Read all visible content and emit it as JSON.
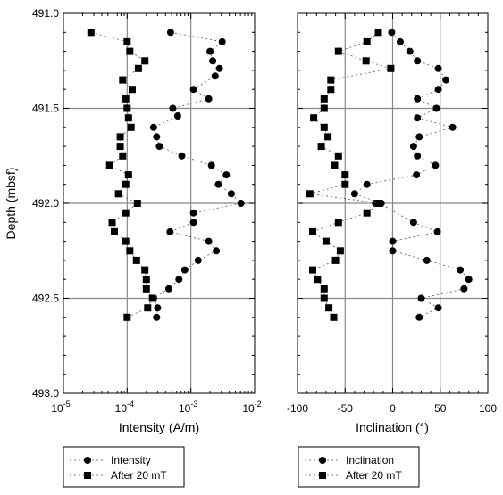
{
  "chart_data": [
    {
      "type": "scatter",
      "panel": "left",
      "xscale": "log",
      "xlabel": "Intensity (A/m)",
      "ylabel": "Depth (mbsf)",
      "xlim": [
        1e-05,
        0.01
      ],
      "ylim": [
        491.0,
        493.0
      ],
      "y_inverted": true,
      "grid": "major lines at x = 1e-4 and 1e-3; y = 491.5, 492.0, 492.5",
      "x_ticks": [
        {
          "v": 1e-05,
          "base": "10",
          "exp": "-5"
        },
        {
          "v": 0.0001,
          "base": "10",
          "exp": "-4"
        },
        {
          "v": 0.001,
          "base": "10",
          "exp": "-3"
        },
        {
          "v": 0.01,
          "base": "10",
          "exp": "-2"
        }
      ],
      "y_ticks": [
        "491.0",
        "491.5",
        "492.0",
        "492.5",
        "493.0"
      ],
      "legend_placement": "bottom, below plot",
      "series": [
        {
          "name": "Intensity",
          "marker": "circle",
          "points": [
            [
              0.00048,
              491.1
            ],
            [
              0.0031,
              491.15
            ],
            [
              0.002,
              491.2
            ],
            [
              0.0022,
              491.25
            ],
            [
              0.0028,
              491.29
            ],
            [
              0.0024,
              491.33
            ],
            [
              0.0011,
              491.4
            ],
            [
              0.0019,
              491.45
            ],
            [
              0.00052,
              491.5
            ],
            [
              0.00062,
              491.54
            ],
            [
              0.00026,
              491.6
            ],
            [
              0.00029,
              491.65
            ],
            [
              0.00032,
              491.7
            ],
            [
              0.00072,
              491.75
            ],
            [
              0.0021,
              491.8
            ],
            [
              0.0036,
              491.85
            ],
            [
              0.0027,
              491.9
            ],
            [
              0.0043,
              491.95
            ],
            [
              0.0061,
              492.0
            ],
            [
              0.0011,
              492.05
            ],
            [
              0.0011,
              492.1
            ],
            [
              0.00047,
              492.15
            ],
            [
              0.0019,
              492.2
            ],
            [
              0.0025,
              492.25
            ],
            [
              0.0013,
              492.3
            ],
            [
              0.0008,
              492.35
            ],
            [
              0.00065,
              492.4
            ],
            [
              0.00045,
              492.45
            ],
            [
              0.00026,
              492.5
            ],
            [
              0.0003,
              492.55
            ],
            [
              0.00029,
              492.6
            ]
          ]
        },
        {
          "name": "After 20 mT",
          "marker": "square",
          "points": [
            [
              2.7e-05,
              491.1
            ],
            [
              0.0001,
              491.15
            ],
            [
              0.00011,
              491.2
            ],
            [
              0.00019,
              491.25
            ],
            [
              0.00015,
              491.29
            ],
            [
              8.5e-05,
              491.35
            ],
            [
              0.00012,
              491.4
            ],
            [
              9.5e-05,
              491.45
            ],
            [
              0.0001,
              491.5
            ],
            [
              0.000105,
              491.55
            ],
            [
              0.000115,
              491.6
            ],
            [
              7.8e-05,
              491.65
            ],
            [
              7.8e-05,
              491.7
            ],
            [
              8.5e-05,
              491.75
            ],
            [
              5.3e-05,
              491.8
            ],
            [
              0.000105,
              491.85
            ],
            [
              9.5e-05,
              491.9
            ],
            [
              7.3e-05,
              491.95
            ],
            [
              0.000145,
              492.0
            ],
            [
              9.5e-05,
              492.05
            ],
            [
              5.8e-05,
              492.1
            ],
            [
              6.3e-05,
              492.15
            ],
            [
              9.5e-05,
              492.2
            ],
            [
              0.00011,
              492.25
            ],
            [
              0.00014,
              492.3
            ],
            [
              0.00019,
              492.35
            ],
            [
              0.0002,
              492.4
            ],
            [
              0.0002,
              492.45
            ],
            [
              0.00025,
              492.5
            ],
            [
              0.00021,
              492.55
            ],
            [
              0.0001,
              492.6
            ]
          ]
        }
      ]
    },
    {
      "type": "scatter",
      "panel": "right",
      "xlabel": "Inclination (°)",
      "xlim": [
        -100,
        100
      ],
      "ylim": [
        491.0,
        493.0
      ],
      "y_inverted": true,
      "grid": "major lines at x = -50, 0, 50; y = 491.5, 492.0, 492.5",
      "x_ticks": [
        "-100",
        "-50",
        "0",
        "50",
        "100"
      ],
      "legend_placement": "bottom, below plot",
      "series": [
        {
          "name": "Inclination",
          "marker": "circle",
          "points": [
            [
              -1,
              491.1
            ],
            [
              8,
              491.15
            ],
            [
              18,
              491.2
            ],
            [
              26,
              491.25
            ],
            [
              48,
              491.29
            ],
            [
              56,
              491.35
            ],
            [
              48,
              491.4
            ],
            [
              26,
              491.45
            ],
            [
              46,
              491.5
            ],
            [
              26,
              491.55
            ],
            [
              63,
              491.6
            ],
            [
              28,
              491.65
            ],
            [
              22,
              491.7
            ],
            [
              26,
              491.75
            ],
            [
              45,
              491.8
            ],
            [
              25,
              491.85
            ],
            [
              -27,
              491.9
            ],
            [
              -40,
              491.95
            ],
            [
              -12,
              492.0
            ],
            [
              -18,
              492.0
            ],
            [
              -14,
              492.0
            ],
            [
              22,
              492.1
            ],
            [
              47,
              492.15
            ],
            [
              0,
              492.2
            ],
            [
              0,
              492.25
            ],
            [
              36,
              492.3
            ],
            [
              71,
              492.35
            ],
            [
              80,
              492.4
            ],
            [
              75,
              492.45
            ],
            [
              30,
              492.5
            ],
            [
              48,
              492.55
            ],
            [
              28,
              492.6
            ]
          ]
        },
        {
          "name": "After 20 mT",
          "marker": "square",
          "points": [
            [
              -15,
              491.1
            ],
            [
              -27,
              491.15
            ],
            [
              -57,
              491.2
            ],
            [
              -28,
              491.25
            ],
            [
              -2,
              491.29
            ],
            [
              -65,
              491.35
            ],
            [
              -65,
              491.4
            ],
            [
              -72,
              491.45
            ],
            [
              -72,
              491.5
            ],
            [
              -83,
              491.55
            ],
            [
              -72,
              491.6
            ],
            [
              -68,
              491.65
            ],
            [
              -75,
              491.7
            ],
            [
              -57,
              491.75
            ],
            [
              -61,
              491.8
            ],
            [
              -50,
              491.85
            ],
            [
              -50,
              491.9
            ],
            [
              -87,
              491.95
            ],
            [
              -14,
              492.0
            ],
            [
              -27,
              492.05
            ],
            [
              -57,
              492.1
            ],
            [
              -84,
              492.15
            ],
            [
              -70,
              492.2
            ],
            [
              -55,
              492.25
            ],
            [
              -60,
              492.3
            ],
            [
              -84,
              492.35
            ],
            [
              -79,
              492.4
            ],
            [
              -72,
              492.45
            ],
            [
              -72,
              492.5
            ],
            [
              -67,
              492.55
            ],
            [
              -62,
              492.6
            ]
          ]
        }
      ]
    }
  ]
}
